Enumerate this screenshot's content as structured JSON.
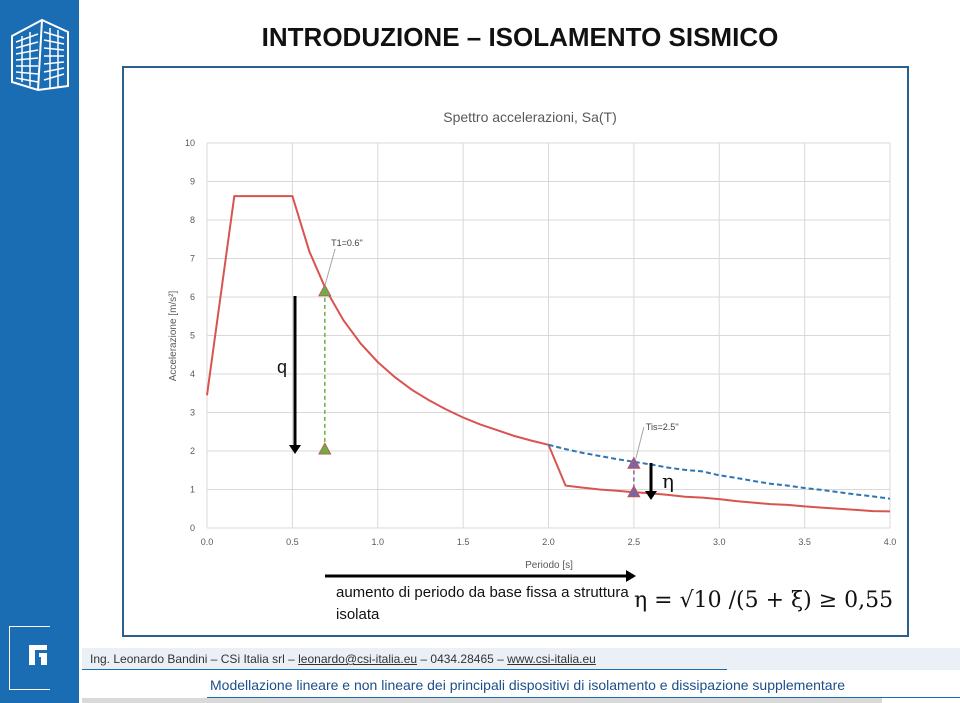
{
  "slide": {
    "title": "INTRODUZIONE – ISOLAMENTO SISMICO",
    "q_label": "q",
    "eta_label": "η",
    "caption": "aumento di periodo da base fissa a struttura isolata",
    "formula": "η = √10 /(5 + ξ) ≥ 0,55"
  },
  "footer": {
    "author_prefix": "Ing. Leonardo Bandini – CSi Italia srl – ",
    "email": "leonardo@csi-italia.eu",
    "phone": " – 0434.28465 – ",
    "website": "www.csi-italia.eu",
    "subtitle": "Modellazione lineare e non lineare dei principali dispositivi di isolamento e dissipazione supplementare"
  },
  "colors": {
    "sidebar": "#1b6db3",
    "spectrum": "#d9534f",
    "dashed": "#2e75b6",
    "green_marker": "#70ad47",
    "purple_marker": "#8064a2"
  },
  "chart_data": {
    "type": "line",
    "title": "Spettro accelerazioni, Sa(T)",
    "xlabel": "Periodo [s]",
    "ylabel": "Accelerazione [m/s²]",
    "xlim": [
      0,
      4
    ],
    "ylim": [
      0,
      10
    ],
    "x_ticks": [
      "0.0",
      "0.5",
      "1.0",
      "1.5",
      "2.0",
      "2.5",
      "3.0",
      "3.5",
      "4.0"
    ],
    "y_ticks": [
      "0",
      "1",
      "2",
      "3",
      "4",
      "5",
      "6",
      "7",
      "8",
      "9",
      "10"
    ],
    "grid": true,
    "series": [
      {
        "style": "solid",
        "color": "#d9534f",
        "points": [
          [
            0,
            3.45
          ],
          [
            0.16,
            8.62
          ],
          [
            0.5,
            8.62
          ],
          [
            0.6,
            7.18
          ],
          [
            0.7,
            6.16
          ],
          [
            0.8,
            5.39
          ],
          [
            0.9,
            4.79
          ],
          [
            1.0,
            4.31
          ],
          [
            1.1,
            3.92
          ],
          [
            1.2,
            3.59
          ],
          [
            1.3,
            3.32
          ],
          [
            1.4,
            3.08
          ],
          [
            1.5,
            2.87
          ],
          [
            1.6,
            2.69
          ],
          [
            1.7,
            2.54
          ],
          [
            1.8,
            2.39
          ],
          [
            1.9,
            2.27
          ],
          [
            2.0,
            2.16
          ],
          [
            2.1,
            1.1
          ],
          [
            2.2,
            1.05
          ],
          [
            2.3,
            1.0
          ],
          [
            2.4,
            0.97
          ],
          [
            2.5,
            0.93
          ],
          [
            2.6,
            0.9
          ],
          [
            2.7,
            0.86
          ],
          [
            2.8,
            0.81
          ],
          [
            2.9,
            0.79
          ],
          [
            3.0,
            0.75
          ],
          [
            3.1,
            0.7
          ],
          [
            3.2,
            0.66
          ],
          [
            3.3,
            0.62
          ],
          [
            3.4,
            0.6
          ],
          [
            3.5,
            0.56
          ],
          [
            3.6,
            0.53
          ],
          [
            3.7,
            0.5
          ],
          [
            3.8,
            0.47
          ],
          [
            3.9,
            0.44
          ],
          [
            4.0,
            0.43
          ]
        ]
      },
      {
        "style": "dashed",
        "color": "#2e75b6",
        "points": [
          [
            2.0,
            2.16
          ],
          [
            2.1,
            2.05
          ],
          [
            2.2,
            1.95
          ],
          [
            2.3,
            1.87
          ],
          [
            2.4,
            1.79
          ],
          [
            2.5,
            1.72
          ],
          [
            2.6,
            1.65
          ],
          [
            2.7,
            1.57
          ],
          [
            2.8,
            1.51
          ],
          [
            2.9,
            1.47
          ],
          [
            3.0,
            1.37
          ],
          [
            3.1,
            1.3
          ],
          [
            3.2,
            1.22
          ],
          [
            3.3,
            1.15
          ],
          [
            3.4,
            1.1
          ],
          [
            3.5,
            1.04
          ],
          [
            3.6,
            0.99
          ],
          [
            3.7,
            0.93
          ],
          [
            3.8,
            0.87
          ],
          [
            3.9,
            0.82
          ],
          [
            4.0,
            0.76
          ]
        ]
      }
    ],
    "annotations": [
      {
        "text": "T1=0.6''",
        "x": 0.68,
        "y": 6.16
      },
      {
        "text": "Tis=2.5''",
        "x": 2.5,
        "y": 1.7
      }
    ],
    "markers": [
      {
        "shape": "triangle",
        "color": "#70ad47",
        "x": 0.69,
        "y": 6.16
      },
      {
        "shape": "triangle",
        "color": "#70ad47",
        "x": 0.69,
        "y": 2.05
      },
      {
        "shape": "triangle",
        "color": "#8064a2",
        "x": 2.5,
        "y": 1.68
      },
      {
        "shape": "triangle",
        "color": "#8064a2",
        "x": 2.5,
        "y": 0.94
      }
    ]
  }
}
